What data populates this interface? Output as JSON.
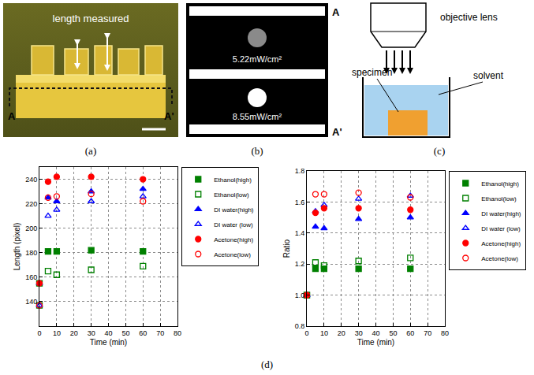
{
  "panels": {
    "a": {
      "label": "(a)",
      "text": "length measured",
      "ends": [
        "A",
        "A'"
      ]
    },
    "b": {
      "label": "(b)",
      "intensities": [
        "5.22mW/cm²",
        "8.55mW/cm²"
      ],
      "ends": [
        "A",
        "A'"
      ]
    },
    "c": {
      "label": "(c)",
      "lens": "objective lens",
      "specimen": "specimen",
      "solvent": "solvent"
    }
  },
  "figure_label": "(d)",
  "chart_data": [
    {
      "type": "scatter",
      "xlabel": "Time (min)",
      "ylabel": "Length (pixel)",
      "x": [
        0,
        5,
        10,
        30,
        60
      ],
      "xlim": [
        0,
        80
      ],
      "xticks": [
        0,
        10,
        20,
        30,
        40,
        50,
        60,
        70,
        80
      ],
      "ylim": [
        120,
        250
      ],
      "yticks": [
        140,
        160,
        180,
        200,
        220,
        240
      ],
      "grid": true,
      "legend": "right",
      "series": [
        {
          "name": "Ethanol(high)",
          "color": "#008000",
          "marker": "square",
          "values": [
            155,
            181,
            181,
            182,
            181
          ]
        },
        {
          "name": "Ethanol(low)",
          "color": "#008000",
          "marker": "square-open",
          "values": [
            137,
            165,
            162,
            166,
            169
          ]
        },
        {
          "name": "DI water(high)",
          "color": "#0000ff",
          "marker": "triangle-up",
          "values": [
            155,
            225,
            222,
            230,
            232
          ]
        },
        {
          "name": "DI water (low)",
          "color": "#0000ff",
          "marker": "triangle-up-open",
          "values": [
            137,
            210,
            215,
            222,
            226
          ]
        },
        {
          "name": "Acetone(high)",
          "color": "#ff0000",
          "marker": "circle",
          "values": [
            155,
            238,
            242,
            242,
            240
          ]
        },
        {
          "name": "Acetone(low)",
          "color": "#ff0000",
          "marker": "circle-open",
          "values": [
            137,
            225,
            226,
            228,
            222
          ]
        }
      ]
    },
    {
      "type": "scatter",
      "xlabel": "Time (min)",
      "ylabel": "Ratio",
      "x": [
        0,
        5,
        10,
        30,
        60
      ],
      "xlim": [
        0,
        80
      ],
      "xticks": [
        0,
        10,
        20,
        30,
        40,
        50,
        60,
        70,
        80
      ],
      "ylim": [
        0.8,
        1.8
      ],
      "yticks": [
        0.8,
        {
          "value": 1,
          "label": "1.0"
        },
        1.2,
        1.4,
        1.6,
        1.8
      ],
      "grid": true,
      "legend": "right",
      "series": [
        {
          "name": "Ethanol(high)",
          "color": "#008000",
          "marker": "square",
          "values": [
            1,
            1.17,
            1.17,
            1.17,
            1.17
          ]
        },
        {
          "name": "Ethanol(low)",
          "color": "#008000",
          "marker": "square-open",
          "values": [
            1,
            1.21,
            1.19,
            1.22,
            1.24
          ]
        },
        {
          "name": "DI water(high)",
          "color": "#0000ff",
          "marker": "triangle-up",
          "values": [
            1,
            1.44,
            1.43,
            1.49,
            1.5
          ]
        },
        {
          "name": "DI water (low)",
          "color": "#0000ff",
          "marker": "triangle-up-open",
          "values": [
            1,
            1.54,
            1.58,
            1.62,
            1.64
          ]
        },
        {
          "name": "Acetone(high)",
          "color": "#ff0000",
          "marker": "circle",
          "values": [
            1,
            1.53,
            1.56,
            1.56,
            1.55
          ]
        },
        {
          "name": "Acetone(low)",
          "color": "#ff0000",
          "marker": "circle-open",
          "values": [
            1,
            1.65,
            1.65,
            1.66,
            1.63
          ]
        }
      ]
    }
  ]
}
